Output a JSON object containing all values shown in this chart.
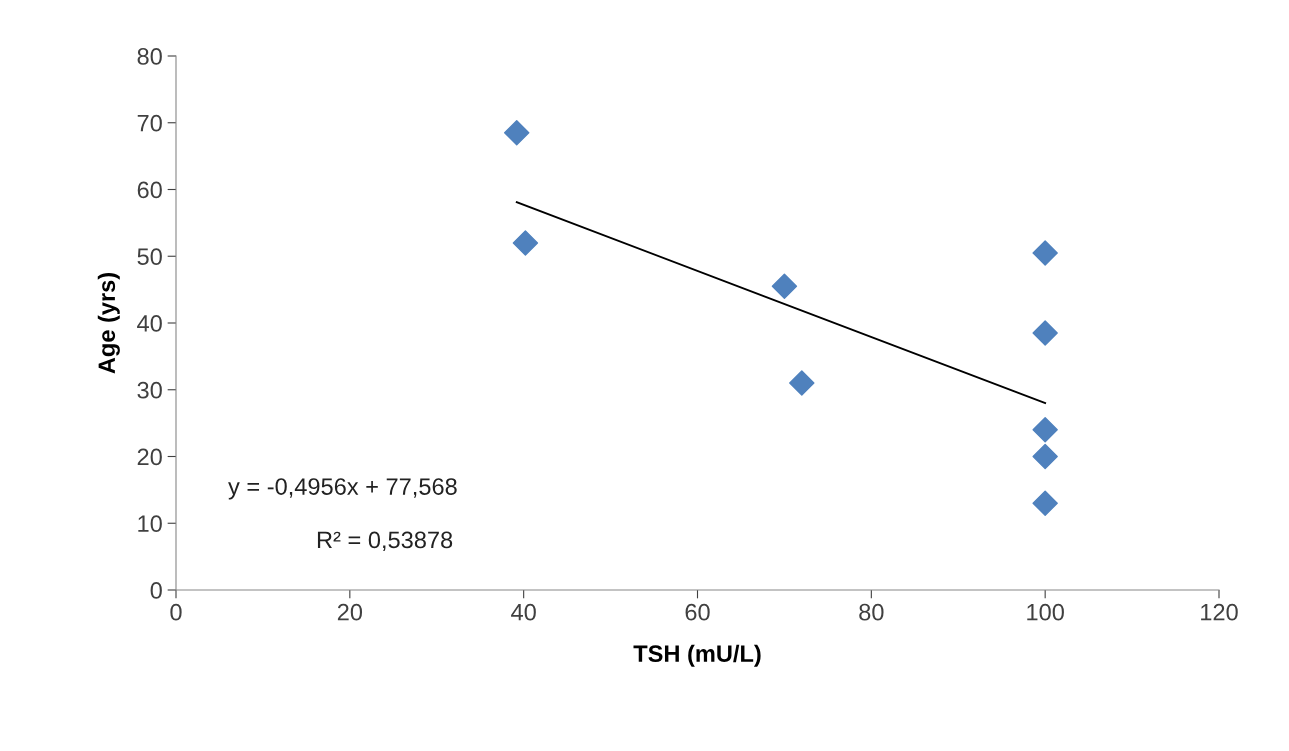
{
  "chart_data": {
    "type": "scatter",
    "xlabel": "TSH (mU/L)",
    "ylabel": "Age (yrs)",
    "xlim": [
      0,
      120
    ],
    "xticks": [
      0,
      20,
      40,
      60,
      80,
      100,
      120
    ],
    "ylim": [
      0,
      80
    ],
    "yticks": [
      0,
      10,
      20,
      30,
      40,
      50,
      60,
      70,
      80
    ],
    "grid": false,
    "marker": "diamond",
    "series": [
      {
        "color": "#4f81bd",
        "x": [
          39.2,
          40.2,
          70,
          72,
          100,
          100,
          100,
          100,
          100
        ],
        "values": [
          68.5,
          52,
          45.5,
          31,
          50.5,
          38.5,
          24,
          20,
          13
        ]
      },
      {
        "type": "line",
        "color": "#000000",
        "line_style": "solid",
        "marker": "none",
        "x": [
          39.2,
          100
        ],
        "values": [
          58.1,
          28
        ]
      }
    ],
    "annotations": [
      "y = -0,4956x + 77,568",
      "R² = 0,53878"
    ]
  }
}
